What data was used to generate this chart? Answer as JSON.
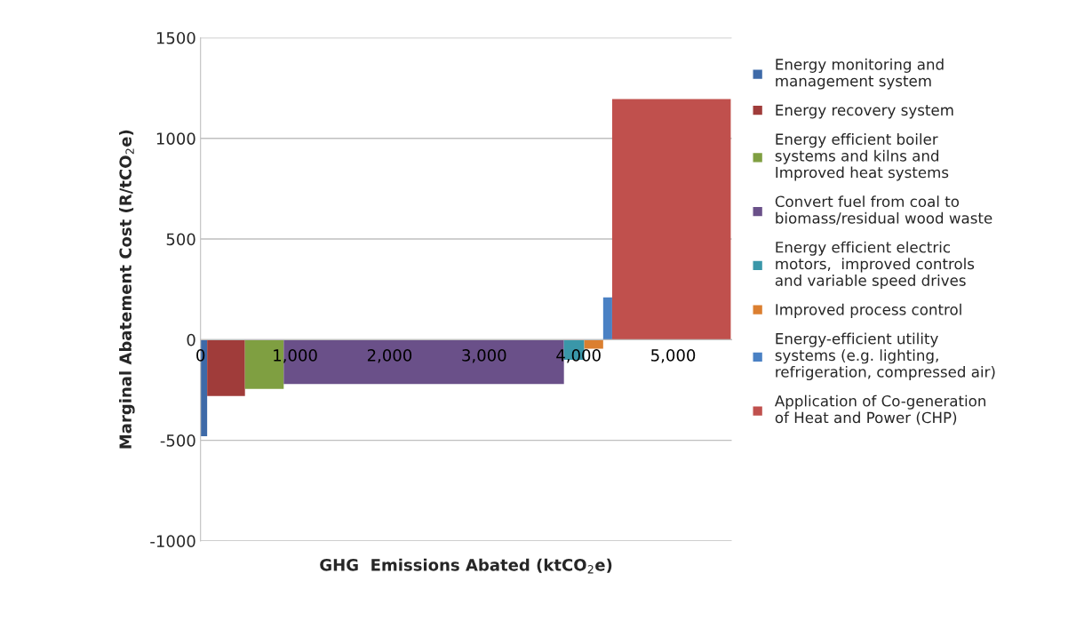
{
  "chart_data": {
    "type": "area",
    "xlabel": "GHG  Emissions Abated (ktCO$_{2}$e)",
    "ylabel": "Marginal Abatement Cost (R/tCO$_{2}$e)",
    "xlim": [
      0,
      5620
    ],
    "xticks": [
      {
        "value": 0,
        "label": "0"
      },
      {
        "value": 1000,
        "label": "1,000"
      },
      {
        "value": 2000,
        "label": "2,000"
      },
      {
        "value": 3000,
        "label": "3,000"
      },
      {
        "value": 4000,
        "label": "4,000"
      },
      {
        "value": 5000,
        "label": "5,000"
      }
    ],
    "ylim": [
      -1000,
      1500
    ],
    "yticks": [
      -1000,
      -500,
      0,
      500,
      1000,
      1500
    ],
    "grid": "y",
    "legend": "right",
    "series": [
      {
        "name": "Energy monitoring and\nmanagement system",
        "color": "#3e6aa8",
        "x": [
          0,
          70
        ],
        "values": [
          -480,
          -480
        ]
      },
      {
        "name": "Energy recovery system",
        "color": "#a03c3a",
        "x": [
          70,
          470
        ],
        "values": [
          -280,
          -280
        ]
      },
      {
        "name": "Energy efficient boiler\nsystems and kilns and\nImproved heat systems",
        "color": "#7f9f41",
        "x": [
          470,
          880
        ],
        "values": [
          -245,
          -245
        ]
      },
      {
        "name": "Convert fuel from coal to\nbiomass/residual wood waste",
        "color": "#6a5089",
        "x": [
          880,
          3845
        ],
        "values": [
          -220,
          -220
        ]
      },
      {
        "name": "Energy efficient electric\nmotors,  improved controls\nand variable speed drives",
        "color": "#3a97a9",
        "x": [
          3845,
          4060
        ],
        "values": [
          -100,
          -100
        ]
      },
      {
        "name": "Improved process control",
        "color": "#db7f30",
        "x": [
          4060,
          4260
        ],
        "values": [
          -45,
          -45
        ]
      },
      {
        "name": "Energy-efficient utility\nsystems (e.g. lighting,\nrefrigeration, compressed air)",
        "color": "#4a81c4",
        "x": [
          4260,
          4355
        ],
        "values": [
          210,
          210
        ]
      },
      {
        "name": "Application of Co-generation\nof Heat and Power (CHP)",
        "color": "#c0504d",
        "x": [
          4355,
          5610
        ],
        "values": [
          1195,
          1195
        ]
      }
    ]
  }
}
